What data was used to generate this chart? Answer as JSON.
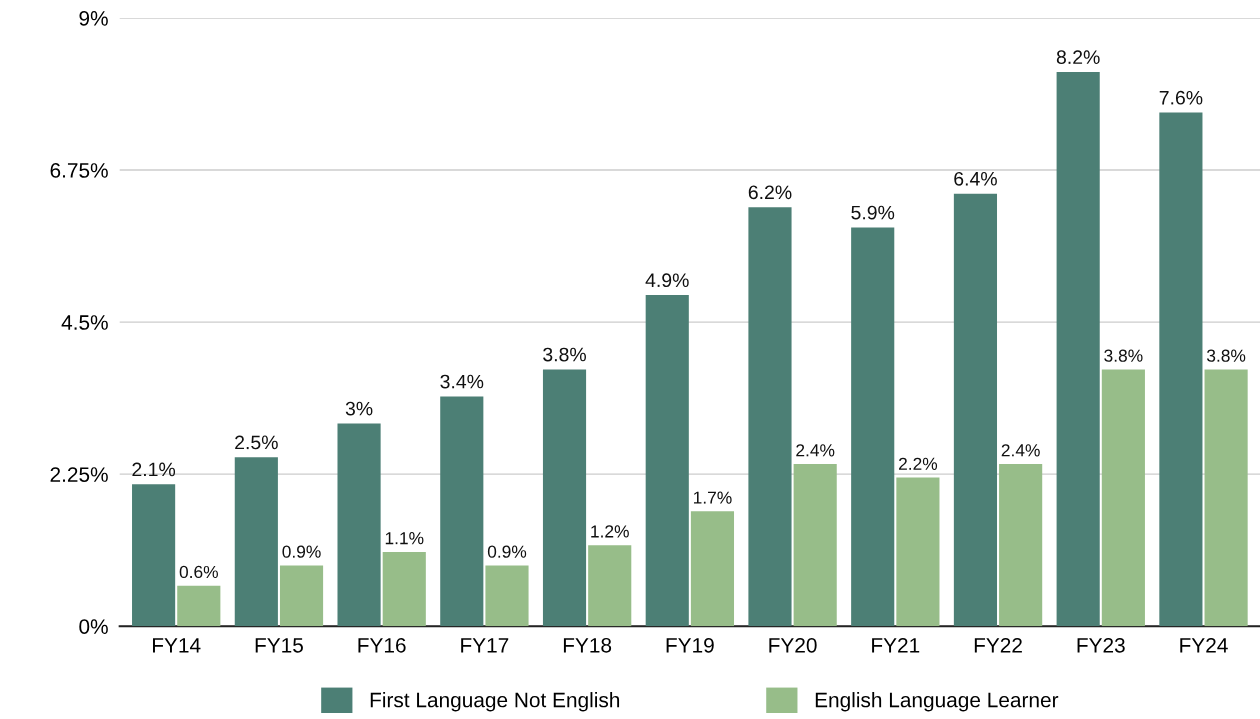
{
  "chart_data": {
    "type": "bar",
    "categories": [
      "FY14",
      "FY15",
      "FY16",
      "FY17",
      "FY18",
      "FY19",
      "FY20",
      "FY21",
      "FY22",
      "FY23",
      "FY24"
    ],
    "series": [
      {
        "name": "First Language Not English",
        "color": "#4c7f75",
        "values": [
          2.1,
          2.5,
          3,
          3.4,
          3.8,
          4.9,
          6.2,
          5.9,
          6.4,
          8.2,
          7.6
        ],
        "value_labels": [
          "2.1%",
          "2.5%",
          "3%",
          "3.4%",
          "3.8%",
          "4.9%",
          "6.2%",
          "5.9%",
          "6.4%",
          "8.2%",
          "7.6%"
        ]
      },
      {
        "name": "English Language Learner",
        "color": "#97bd89",
        "values": [
          0.6,
          0.9,
          1.1,
          0.9,
          1.2,
          1.7,
          2.4,
          2.2,
          2.4,
          3.8,
          3.8
        ],
        "value_labels": [
          "0.6%",
          "0.9%",
          "1.1%",
          "0.9%",
          "1.2%",
          "1.7%",
          "2.4%",
          "2.2%",
          "2.4%",
          "3.8%",
          "3.8%"
        ]
      }
    ],
    "ylim": [
      0,
      9
    ],
    "yticks": [
      {
        "value": 0,
        "label": "0%"
      },
      {
        "value": 2.25,
        "label": "2.25%"
      },
      {
        "value": 4.5,
        "label": "4.5%"
      },
      {
        "value": 6.75,
        "label": "6.75%"
      },
      {
        "value": 9,
        "label": "9%"
      }
    ],
    "grid": "y",
    "legend": "bottom"
  }
}
